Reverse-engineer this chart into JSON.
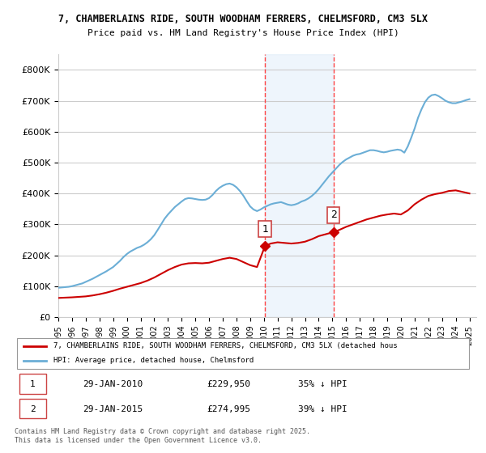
{
  "title_line1": "7, CHAMBERLAINS RIDE, SOUTH WOODHAM FERRERS, CHELMSFORD, CM3 5LX",
  "title_line2": "Price paid vs. HM Land Registry's House Price Index (HPI)",
  "ylabel": "",
  "xlim_start": 1995.0,
  "xlim_end": 2025.5,
  "ylim_min": 0,
  "ylim_max": 850000,
  "marker1_date": 2010.08,
  "marker2_date": 2015.08,
  "marker1_label": "1",
  "marker2_label": "2",
  "marker1_price": 229950,
  "marker2_price": 274995,
  "legend_line1": "7, CHAMBERLAINS RIDE, SOUTH WOODHAM FERRERS, CHELMSFORD, CM3 5LX (detached hous",
  "legend_line2": "HPI: Average price, detached house, Chelmsford",
  "table_row1": [
    "1",
    "29-JAN-2010",
    "£229,950",
    "35% ↓ HPI"
  ],
  "table_row2": [
    "2",
    "29-JAN-2015",
    "£274,995",
    "39% ↓ HPI"
  ],
  "footer": "Contains HM Land Registry data © Crown copyright and database right 2025.\nThis data is licensed under the Open Government Licence v3.0.",
  "hpi_color": "#6baed6",
  "price_color": "#cc0000",
  "marker_color": "#cc0000",
  "grid_color": "#cccccc",
  "shade_color": "#d0e4f7",
  "marker_vline_color": "#ff4444",
  "background_color": "#ffffff",
  "hpi_data_x": [
    1995.0,
    1995.25,
    1995.5,
    1995.75,
    1996.0,
    1996.25,
    1996.5,
    1996.75,
    1997.0,
    1997.25,
    1997.5,
    1997.75,
    1998.0,
    1998.25,
    1998.5,
    1998.75,
    1999.0,
    1999.25,
    1999.5,
    1999.75,
    2000.0,
    2000.25,
    2000.5,
    2000.75,
    2001.0,
    2001.25,
    2001.5,
    2001.75,
    2002.0,
    2002.25,
    2002.5,
    2002.75,
    2003.0,
    2003.25,
    2003.5,
    2003.75,
    2004.0,
    2004.25,
    2004.5,
    2004.75,
    2005.0,
    2005.25,
    2005.5,
    2005.75,
    2006.0,
    2006.25,
    2006.5,
    2006.75,
    2007.0,
    2007.25,
    2007.5,
    2007.75,
    2008.0,
    2008.25,
    2008.5,
    2008.75,
    2009.0,
    2009.25,
    2009.5,
    2009.75,
    2010.0,
    2010.25,
    2010.5,
    2010.75,
    2011.0,
    2011.25,
    2011.5,
    2011.75,
    2012.0,
    2012.25,
    2012.5,
    2012.75,
    2013.0,
    2013.25,
    2013.5,
    2013.75,
    2014.0,
    2014.25,
    2014.5,
    2014.75,
    2015.0,
    2015.25,
    2015.5,
    2015.75,
    2016.0,
    2016.25,
    2016.5,
    2016.75,
    2017.0,
    2017.25,
    2017.5,
    2017.75,
    2018.0,
    2018.25,
    2018.5,
    2018.75,
    2019.0,
    2019.25,
    2019.5,
    2019.75,
    2020.0,
    2020.25,
    2020.5,
    2020.75,
    2021.0,
    2021.25,
    2021.5,
    2021.75,
    2022.0,
    2022.25,
    2022.5,
    2022.75,
    2023.0,
    2023.25,
    2023.5,
    2023.75,
    2024.0,
    2024.25,
    2024.5,
    2024.75,
    2025.0
  ],
  "hpi_data_y": [
    95000,
    96000,
    97000,
    98000,
    100000,
    103000,
    106000,
    109000,
    114000,
    119000,
    124000,
    130000,
    136000,
    142000,
    148000,
    155000,
    162000,
    172000,
    182000,
    194000,
    204000,
    212000,
    218000,
    224000,
    228000,
    234000,
    242000,
    252000,
    265000,
    282000,
    300000,
    318000,
    332000,
    344000,
    356000,
    365000,
    374000,
    382000,
    385000,
    384000,
    382000,
    380000,
    379000,
    380000,
    385000,
    395000,
    408000,
    418000,
    425000,
    430000,
    432000,
    428000,
    420000,
    408000,
    393000,
    375000,
    358000,
    348000,
    343000,
    348000,
    355000,
    360000,
    365000,
    368000,
    370000,
    372000,
    368000,
    364000,
    362000,
    364000,
    368000,
    374000,
    378000,
    384000,
    392000,
    402000,
    414000,
    428000,
    442000,
    456000,
    468000,
    480000,
    492000,
    502000,
    510000,
    516000,
    522000,
    526000,
    528000,
    532000,
    536000,
    540000,
    540000,
    538000,
    535000,
    533000,
    535000,
    538000,
    540000,
    542000,
    540000,
    532000,
    552000,
    580000,
    610000,
    645000,
    672000,
    695000,
    710000,
    718000,
    720000,
    715000,
    708000,
    700000,
    695000,
    692000,
    692000,
    695000,
    698000,
    702000,
    705000
  ],
  "price_data_x": [
    1995.0,
    1995.5,
    1996.0,
    1996.5,
    1997.0,
    1997.5,
    1998.0,
    1998.5,
    1999.0,
    1999.5,
    2000.0,
    2000.5,
    2001.0,
    2001.5,
    2002.0,
    2002.5,
    2003.0,
    2003.5,
    2004.0,
    2004.5,
    2005.0,
    2005.5,
    2006.0,
    2006.5,
    2007.0,
    2007.5,
    2008.0,
    2008.5,
    2009.0,
    2009.5,
    2010.08,
    2010.5,
    2011.0,
    2011.5,
    2012.0,
    2012.5,
    2013.0,
    2013.5,
    2014.0,
    2014.5,
    2015.08,
    2015.5,
    2016.0,
    2016.5,
    2017.0,
    2017.5,
    2018.0,
    2018.5,
    2019.0,
    2019.5,
    2020.0,
    2020.5,
    2021.0,
    2021.5,
    2022.0,
    2022.5,
    2023.0,
    2023.5,
    2024.0,
    2024.5,
    2025.0
  ],
  "price_data_y": [
    62000,
    63000,
    64000,
    65500,
    67000,
    70000,
    74000,
    79000,
    85000,
    92000,
    98000,
    104000,
    110000,
    118000,
    128000,
    140000,
    152000,
    162000,
    170000,
    174000,
    175000,
    174000,
    176000,
    182000,
    188000,
    192000,
    188000,
    178000,
    168000,
    162000,
    229950,
    238000,
    242000,
    240000,
    238000,
    240000,
    244000,
    252000,
    262000,
    268000,
    274995,
    282000,
    292000,
    300000,
    308000,
    316000,
    322000,
    328000,
    332000,
    335000,
    332000,
    345000,
    365000,
    380000,
    392000,
    398000,
    402000,
    408000,
    410000,
    405000,
    400000
  ]
}
